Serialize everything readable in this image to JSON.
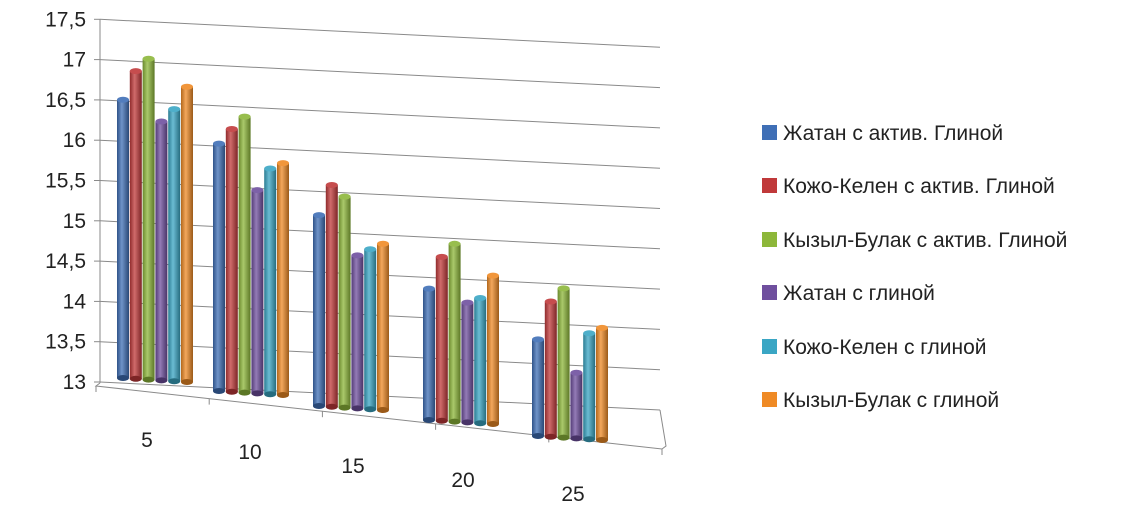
{
  "chart_data": {
    "type": "bar",
    "categories": [
      "5",
      "10",
      "15",
      "20",
      "25"
    ],
    "series": [
      {
        "name": "Жатан с актив. Глиной",
        "color": "#3f6fb6",
        "values": [
          16.6,
          16.2,
          15.47,
          14.7,
          14.25
        ]
      },
      {
        "name": "Кожо-Келен с актив. Глиной",
        "color": "#c0393a",
        "values": [
          16.98,
          16.4,
          15.87,
          15.12,
          14.75
        ]
      },
      {
        "name": "Кызыл-Булак с актив. Глиной",
        "color": "#8db73a",
        "values": [
          17.15,
          16.57,
          15.73,
          15.3,
          14.93
        ]
      },
      {
        "name": "Жатан с глиной",
        "color": "#6f4f9e",
        "values": [
          16.35,
          15.63,
          14.98,
          14.55,
          13.85
        ]
      },
      {
        "name": "Кожо-Келен с глиной",
        "color": "#3aa6c4",
        "values": [
          16.52,
          15.92,
          15.07,
          14.62,
          14.37
        ]
      },
      {
        "name": "Кызыл-Булак с глиной",
        "color": "#ef8a25",
        "values": [
          16.82,
          16.0,
          15.15,
          14.92,
          14.45
        ]
      }
    ],
    "ylim": [
      13,
      17.5
    ],
    "yticks": [
      "13",
      "13,5",
      "14",
      "14,5",
      "15",
      "15,5",
      "16",
      "16,5",
      "17",
      "17,5"
    ],
    "grid": true,
    "legend_position": "right",
    "title": "",
    "xlabel": "",
    "ylabel": ""
  }
}
